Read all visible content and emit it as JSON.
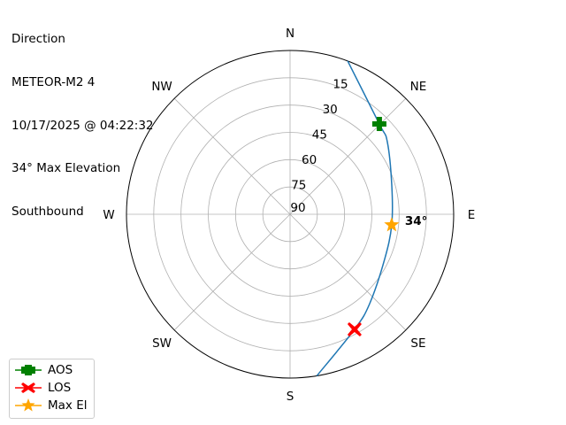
{
  "title_lines": [
    "Direction",
    "METEOR-M2 4",
    "10/17/2025 @ 04:22:32",
    "34° Max Elevation",
    "Southbound"
  ],
  "chart_data": {
    "type": "polar-line",
    "theta_zero": "N",
    "theta_direction": "clockwise",
    "r_axis": "elevation (90 at center, 0 at edge)",
    "r_ticks": [
      15,
      30,
      45,
      60,
      75,
      90
    ],
    "rlim": [
      90,
      0
    ],
    "direction_labels": [
      "N",
      "NE",
      "E",
      "SE",
      "S",
      "SW",
      "W",
      "NW"
    ],
    "grid": true,
    "track": {
      "color": "#1f77b4",
      "points": [
        {
          "az": 20.6,
          "el": 0
        },
        {
          "az": 44.7,
          "el": 20.2
        },
        {
          "az": 53.3,
          "el": 23.3
        },
        {
          "az": 74.4,
          "el": 31.9
        },
        {
          "az": 96,
          "el": 33.8
        },
        {
          "az": 115.5,
          "el": 32.4
        },
        {
          "az": 138.3,
          "el": 24.2
        },
        {
          "az": 150.7,
          "el": 17.5
        },
        {
          "az": 170.6,
          "el": 0
        }
      ]
    },
    "markers": [
      {
        "name": "AOS",
        "az": 44.7,
        "el": 20.2,
        "color": "#008000",
        "shape": "plus"
      },
      {
        "name": "LOS",
        "az": 150.7,
        "el": 17.5,
        "color": "#ff0000",
        "shape": "x"
      },
      {
        "name": "Max El",
        "az": 96,
        "el": 33.8,
        "color": "#ffa500",
        "shape": "star"
      }
    ],
    "annotation": "34°",
    "legend_position": "lower-left"
  }
}
